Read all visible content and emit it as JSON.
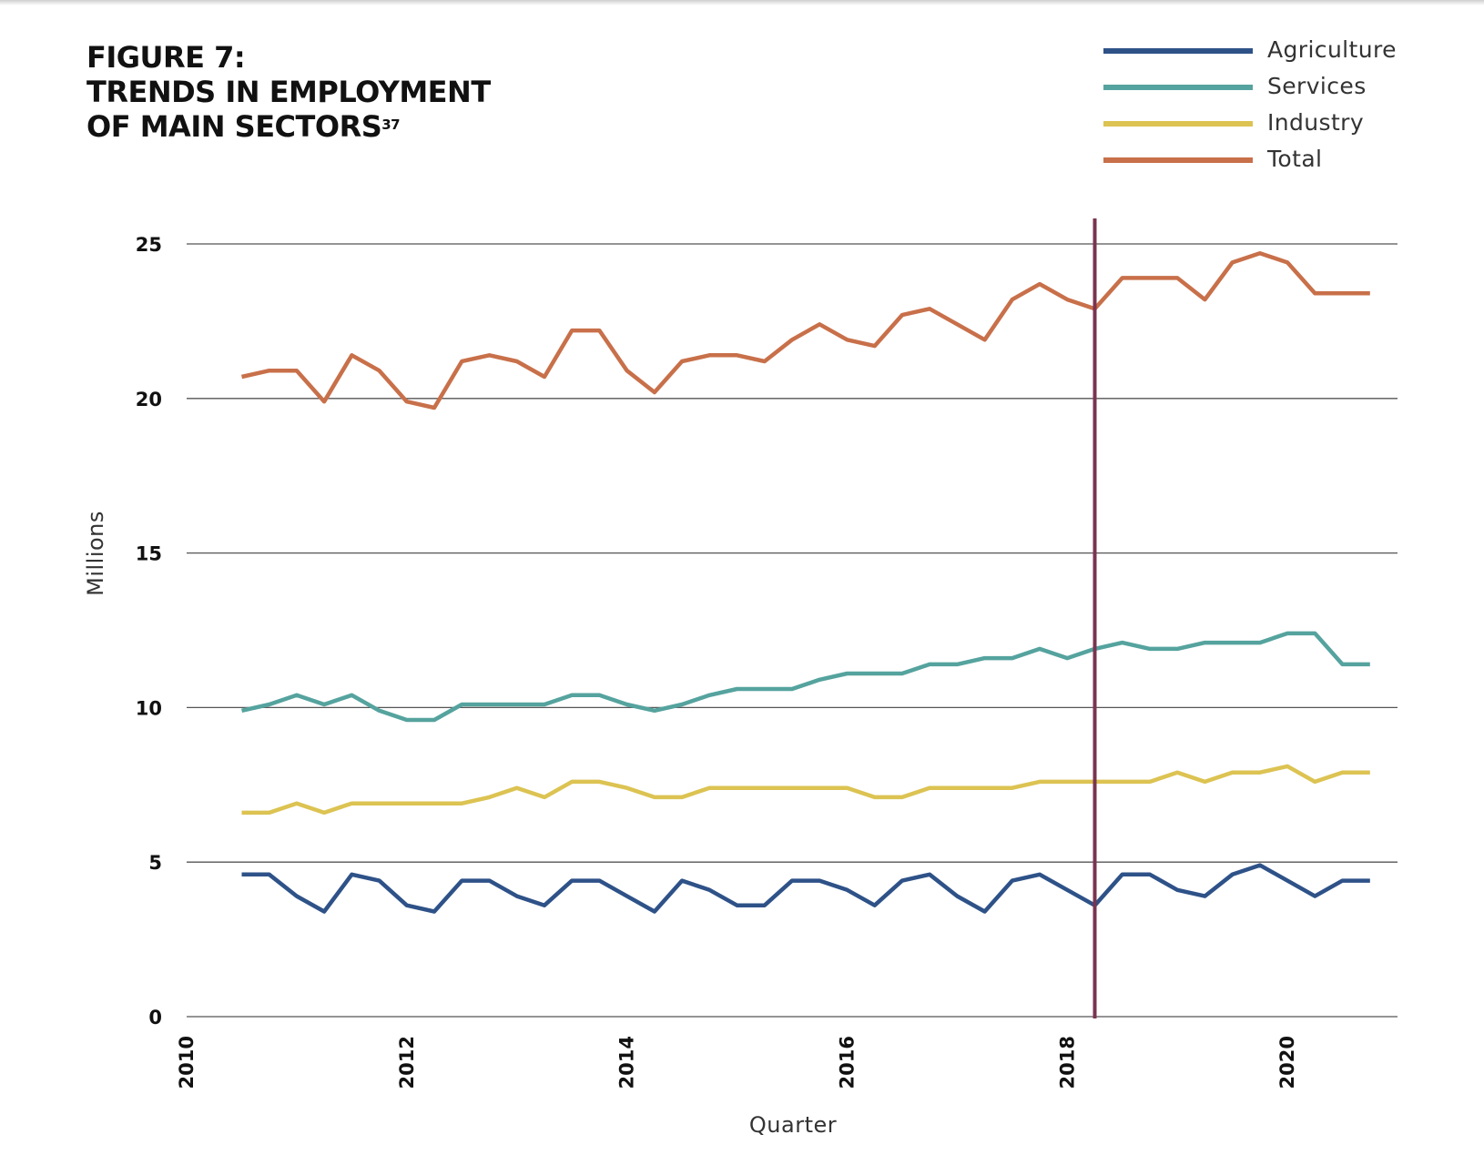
{
  "figure": {
    "title_line1": "FIGURE 7:",
    "title_line2": "TRENDS IN EMPLOYMENT",
    "title_line3": "OF MAIN SECTORS",
    "title_note": "37"
  },
  "chart_data": {
    "type": "line",
    "xlabel": "Quarter",
    "ylabel": "Millions",
    "ylim": [
      0,
      25
    ],
    "yticks": [
      0,
      5,
      10,
      15,
      20,
      25
    ],
    "xlim": [
      2010,
      2021
    ],
    "xticks": [
      "2010",
      "2012",
      "2014",
      "2016",
      "2018",
      "2020"
    ],
    "grid": "horizontal",
    "legend_position": "top-right",
    "reference_line": {
      "x": 2018.25,
      "color": "#7a3450"
    },
    "x": [
      2010.5,
      2010.75,
      2011.0,
      2011.25,
      2011.5,
      2011.75,
      2012.0,
      2012.25,
      2012.5,
      2012.75,
      2013.0,
      2013.25,
      2013.5,
      2013.75,
      2014.0,
      2014.25,
      2014.5,
      2014.75,
      2015.0,
      2015.25,
      2015.5,
      2015.75,
      2016.0,
      2016.25,
      2016.5,
      2016.75,
      2017.0,
      2017.25,
      2017.5,
      2017.75,
      2018.0,
      2018.25,
      2018.5,
      2018.75,
      2019.0,
      2019.25,
      2019.5,
      2019.75,
      2020.0,
      2020.25,
      2020.5,
      2020.75
    ],
    "series": [
      {
        "name": "Agriculture",
        "color": "#2e5288",
        "values": [
          4.6,
          4.6,
          3.9,
          3.4,
          4.6,
          4.4,
          3.6,
          3.4,
          4.4,
          4.4,
          3.9,
          3.6,
          4.4,
          4.4,
          3.9,
          3.4,
          4.4,
          4.1,
          3.6,
          3.6,
          4.4,
          4.4,
          4.1,
          3.6,
          4.4,
          4.6,
          3.9,
          3.4,
          4.4,
          4.6,
          4.1,
          3.6,
          4.6,
          4.6,
          4.1,
          3.9,
          4.6,
          4.9,
          4.4,
          3.9,
          4.4,
          4.4
        ]
      },
      {
        "name": "Services",
        "color": "#55a39e",
        "values": [
          9.9,
          10.1,
          10.4,
          10.1,
          10.4,
          9.9,
          9.6,
          9.6,
          10.1,
          10.1,
          10.1,
          10.1,
          10.4,
          10.4,
          10.1,
          9.9,
          10.1,
          10.4,
          10.6,
          10.6,
          10.6,
          10.9,
          11.1,
          11.1,
          11.1,
          11.4,
          11.4,
          11.6,
          11.6,
          11.9,
          11.6,
          11.9,
          12.1,
          11.9,
          11.9,
          12.1,
          12.1,
          12.1,
          12.4,
          12.4,
          11.4,
          11.4
        ]
      },
      {
        "name": "Industry",
        "color": "#dcc352",
        "values": [
          6.6,
          6.6,
          6.9,
          6.6,
          6.9,
          6.9,
          6.9,
          6.9,
          6.9,
          7.1,
          7.4,
          7.1,
          7.6,
          7.6,
          7.4,
          7.1,
          7.1,
          7.4,
          7.4,
          7.4,
          7.4,
          7.4,
          7.4,
          7.1,
          7.1,
          7.4,
          7.4,
          7.4,
          7.4,
          7.6,
          7.6,
          7.6,
          7.6,
          7.6,
          7.9,
          7.6,
          7.9,
          7.9,
          8.1,
          7.6,
          7.9,
          7.9
        ]
      },
      {
        "name": "Total",
        "color": "#c8704a",
        "values": [
          20.7,
          20.9,
          20.9,
          19.9,
          21.4,
          20.9,
          19.9,
          19.7,
          21.2,
          21.4,
          21.2,
          20.7,
          22.2,
          22.2,
          20.9,
          20.2,
          21.2,
          21.4,
          21.4,
          21.2,
          21.9,
          22.4,
          21.9,
          21.7,
          22.7,
          22.9,
          22.4,
          21.9,
          23.2,
          23.7,
          23.2,
          22.9,
          23.9,
          23.9,
          23.9,
          23.2,
          24.4,
          24.7,
          24.4,
          23.4,
          23.4,
          23.4
        ]
      }
    ]
  }
}
